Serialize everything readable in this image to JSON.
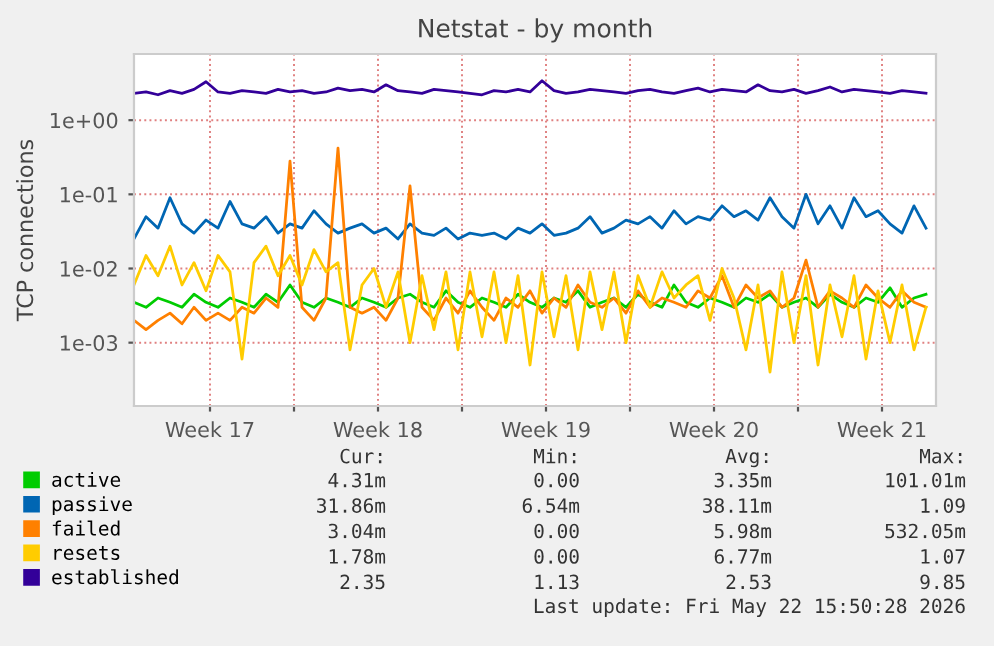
{
  "chart_data": {
    "type": "line",
    "title": "Netstat - by month",
    "ylabel": "TCP connections",
    "x": [
      "2026-04-20T08:00",
      "2026-04-20T20:00",
      "2026-04-21T08:00",
      "2026-04-21T20:00",
      "2026-04-22T08:00",
      "2026-04-22T20:00",
      "2026-04-23T08:00",
      "2026-04-23T20:00",
      "2026-04-24T08:00",
      "2026-04-24T20:00",
      "2026-04-25T08:00",
      "2026-04-25T20:00",
      "2026-04-26T08:00",
      "2026-04-26T20:00",
      "2026-04-27T08:00",
      "2026-04-27T20:00",
      "2026-04-28T08:00",
      "2026-04-28T20:00",
      "2026-04-29T08:00",
      "2026-04-29T20:00",
      "2026-04-30T08:00",
      "2026-04-30T20:00",
      "2026-05-01T08:00",
      "2026-05-01T20:00",
      "2026-05-02T08:00",
      "2026-05-02T20:00",
      "2026-05-03T08:00",
      "2026-05-03T20:00",
      "2026-05-04T08:00",
      "2026-05-04T20:00",
      "2026-05-05T08:00",
      "2026-05-05T20:00",
      "2026-05-06T08:00",
      "2026-05-06T20:00",
      "2026-05-07T08:00",
      "2026-05-07T20:00",
      "2026-05-08T08:00",
      "2026-05-08T20:00",
      "2026-05-09T08:00",
      "2026-05-09T20:00",
      "2026-05-10T08:00",
      "2026-05-10T20:00",
      "2026-05-11T08:00",
      "2026-05-11T20:00",
      "2026-05-12T08:00",
      "2026-05-12T20:00",
      "2026-05-13T08:00",
      "2026-05-13T20:00",
      "2026-05-14T08:00",
      "2026-05-14T20:00",
      "2026-05-15T08:00",
      "2026-05-15T20:00",
      "2026-05-16T08:00",
      "2026-05-16T20:00",
      "2026-05-17T08:00",
      "2026-05-17T20:00",
      "2026-05-18T08:00",
      "2026-05-18T20:00",
      "2026-05-19T08:00",
      "2026-05-19T20:00",
      "2026-05-20T08:00",
      "2026-05-20T20:00",
      "2026-05-21T08:00",
      "2026-05-21T20:00",
      "2026-05-22T08:00",
      "2026-05-22T20:00",
      "2026-05-23T08:00"
    ],
    "series": [
      {
        "name": "active",
        "color": "#00cc00",
        "values": [
          0.0035,
          0.003,
          0.004,
          0.0035,
          0.003,
          0.0045,
          0.0035,
          0.003,
          0.004,
          0.0035,
          0.003,
          0.0045,
          0.0035,
          0.006,
          0.0035,
          0.003,
          0.004,
          0.0035,
          0.003,
          0.004,
          0.0035,
          0.003,
          0.004,
          0.0045,
          0.0035,
          0.003,
          0.005,
          0.0035,
          0.003,
          0.004,
          0.0035,
          0.003,
          0.0045,
          0.0035,
          0.003,
          0.004,
          0.0035,
          0.005,
          0.003,
          0.0035,
          0.004,
          0.003,
          0.0045,
          0.0035,
          0.003,
          0.006,
          0.0035,
          0.003,
          0.004,
          0.0035,
          0.003,
          0.004,
          0.0035,
          0.0045,
          0.003,
          0.0035,
          0.004,
          0.003,
          0.0045,
          0.0035,
          0.003,
          0.004,
          0.0035,
          0.0055,
          0.003,
          0.004,
          0.0045
        ]
      },
      {
        "name": "passive",
        "color": "#0066b3",
        "values": [
          0.025,
          0.05,
          0.035,
          0.09,
          0.04,
          0.03,
          0.045,
          0.035,
          0.08,
          0.04,
          0.035,
          0.05,
          0.03,
          0.04,
          0.035,
          0.06,
          0.04,
          0.03,
          0.035,
          0.04,
          0.03,
          0.035,
          0.025,
          0.04,
          0.03,
          0.028,
          0.035,
          0.025,
          0.03,
          0.028,
          0.03,
          0.025,
          0.035,
          0.03,
          0.04,
          0.028,
          0.03,
          0.035,
          0.05,
          0.03,
          0.035,
          0.045,
          0.04,
          0.05,
          0.035,
          0.06,
          0.04,
          0.05,
          0.045,
          0.07,
          0.05,
          0.06,
          0.045,
          0.09,
          0.05,
          0.035,
          0.1,
          0.04,
          0.07,
          0.035,
          0.09,
          0.05,
          0.06,
          0.04,
          0.03,
          0.07,
          0.035
        ]
      },
      {
        "name": "failed",
        "color": "#ff8000",
        "values": [
          0.002,
          0.0015,
          0.002,
          0.0025,
          0.0018,
          0.003,
          0.002,
          0.0025,
          0.002,
          0.003,
          0.0025,
          0.004,
          0.003,
          0.28,
          0.003,
          0.002,
          0.004,
          0.42,
          0.003,
          0.0025,
          0.003,
          0.002,
          0.004,
          0.13,
          0.003,
          0.002,
          0.004,
          0.0025,
          0.005,
          0.003,
          0.002,
          0.004,
          0.003,
          0.005,
          0.0025,
          0.004,
          0.003,
          0.006,
          0.0035,
          0.003,
          0.004,
          0.0025,
          0.005,
          0.003,
          0.004,
          0.0035,
          0.003,
          0.005,
          0.004,
          0.008,
          0.003,
          0.006,
          0.004,
          0.005,
          0.003,
          0.004,
          0.013,
          0.003,
          0.005,
          0.004,
          0.003,
          0.006,
          0.004,
          0.003,
          0.005,
          0.0035,
          0.003
        ]
      },
      {
        "name": "resets",
        "color": "#ffcc00",
        "values": [
          0.006,
          0.015,
          0.008,
          0.02,
          0.006,
          0.012,
          0.005,
          0.015,
          0.009,
          0.0006,
          0.012,
          0.02,
          0.008,
          0.015,
          0.006,
          0.018,
          0.009,
          0.012,
          0.0008,
          0.006,
          0.01,
          0.003,
          0.009,
          0.001,
          0.008,
          0.0015,
          0.009,
          0.0008,
          0.009,
          0.0012,
          0.009,
          0.001,
          0.008,
          0.0005,
          0.009,
          0.0012,
          0.008,
          0.0008,
          0.009,
          0.0015,
          0.009,
          0.001,
          0.008,
          0.003,
          0.009,
          0.004,
          0.006,
          0.008,
          0.002,
          0.01,
          0.004,
          0.0008,
          0.006,
          0.0004,
          0.009,
          0.001,
          0.008,
          0.0005,
          0.006,
          0.0012,
          0.008,
          0.0006,
          0.005,
          0.001,
          0.006,
          0.0008,
          0.003
        ]
      },
      {
        "name": "established",
        "color": "#330099",
        "values": [
          2.3,
          2.4,
          2.2,
          2.5,
          2.3,
          2.6,
          3.3,
          2.4,
          2.3,
          2.5,
          2.4,
          2.3,
          2.6,
          2.4,
          2.5,
          2.3,
          2.4,
          2.7,
          2.5,
          2.6,
          2.4,
          3.0,
          2.5,
          2.4,
          2.3,
          2.6,
          2.5,
          2.4,
          2.3,
          2.2,
          2.5,
          2.4,
          2.6,
          2.4,
          3.4,
          2.5,
          2.3,
          2.4,
          2.6,
          2.5,
          2.4,
          2.3,
          2.5,
          2.6,
          2.4,
          2.3,
          2.5,
          2.7,
          2.4,
          2.6,
          2.5,
          2.4,
          3.0,
          2.5,
          2.4,
          2.6,
          2.3,
          2.5,
          2.8,
          2.4,
          2.6,
          2.5,
          2.4,
          2.3,
          2.5,
          2.4,
          2.3
        ]
      }
    ],
    "log": "y",
    "ylim": [
      0.00014,
      7.8
    ],
    "yticks": [
      {
        "value": 0.001,
        "label": "1e-03"
      },
      {
        "value": 0.01,
        "label": "1e-02"
      },
      {
        "value": 0.1,
        "label": "1e-01"
      },
      {
        "value": 1,
        "label": "1e+00"
      }
    ],
    "xlim": [
      "2026-04-20T08:00",
      "2026-05-23T18:00"
    ],
    "xticks": [
      {
        "value": "2026-04-23T12:00",
        "label": "Week 17"
      },
      {
        "value": "2026-04-27",
        "label": null
      },
      {
        "value": "2026-04-30T12:00",
        "label": "Week 18"
      },
      {
        "value": "2026-05-04",
        "label": null
      },
      {
        "value": "2026-05-07T12:00",
        "label": "Week 19"
      },
      {
        "value": "2026-05-11",
        "label": null
      },
      {
        "value": "2026-05-14T12:00",
        "label": "Week 20"
      },
      {
        "value": "2026-05-18",
        "label": null
      },
      {
        "value": "2026-05-21T12:00",
        "label": "Week 21"
      }
    ],
    "grid": true,
    "legend": "bottom left",
    "line_style": "solid",
    "annotations": [
      "Cur:",
      "Min:",
      "Avg:",
      "Max:",
      "4.31m",
      "0.00",
      "3.35m",
      "101.01m",
      "31.86m",
      "6.54m",
      "38.11m",
      "1.09",
      "3.04m",
      "0.00",
      "5.98m",
      "532.05m",
      "1.78m",
      "0.00",
      "6.77m",
      "1.07",
      "2.35",
      "1.13",
      "2.53",
      "9.85",
      "Last update: Fri May 22 15:50:28 2026"
    ]
  }
}
